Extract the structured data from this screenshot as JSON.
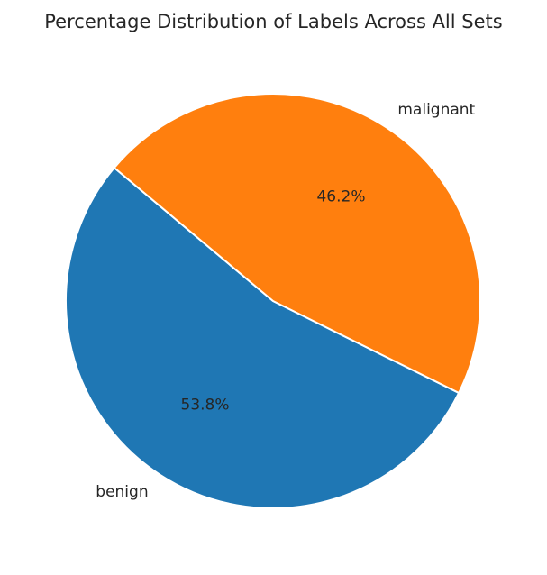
{
  "chart_data": {
    "type": "pie",
    "title": "Percentage Distribution of Labels Across All Sets",
    "categories": [
      "benign",
      "malignant"
    ],
    "values": [
      53.8,
      46.2
    ],
    "value_labels": [
      "53.8%",
      "46.2%"
    ],
    "colors": [
      "#1f77b4",
      "#ff7f0e"
    ],
    "start_angle_deg": 140,
    "direction": "counterclockwise",
    "legend": "none"
  }
}
